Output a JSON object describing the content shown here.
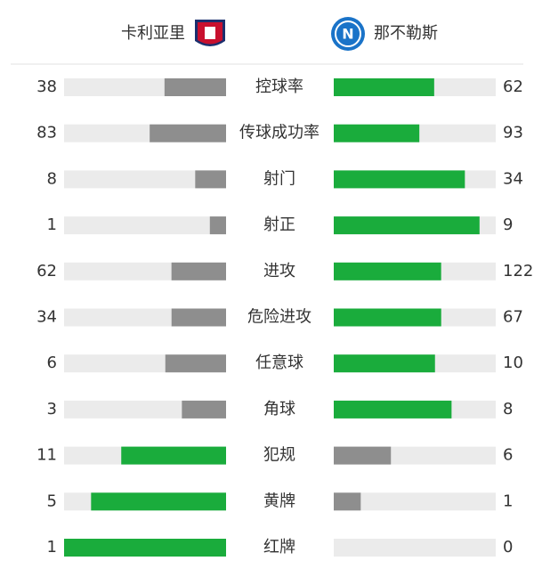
{
  "teams": {
    "home": "卡利亚里",
    "away": "那不勒斯"
  },
  "colors": {
    "leading": "#1aac3c",
    "trailing": "#8e8e8e",
    "track": "#ebebeb"
  },
  "stats": [
    {
      "label": "控球率",
      "home": 38,
      "away": 62
    },
    {
      "label": "传球成功率",
      "home": 83,
      "away": 93
    },
    {
      "label": "射门",
      "home": 8,
      "away": 34
    },
    {
      "label": "射正",
      "home": 1,
      "away": 9
    },
    {
      "label": "进攻",
      "home": 62,
      "away": 122
    },
    {
      "label": "危险进攻",
      "home": 34,
      "away": 67
    },
    {
      "label": "任意球",
      "home": 6,
      "away": 10
    },
    {
      "label": "角球",
      "home": 3,
      "away": 8
    },
    {
      "label": "犯规",
      "home": 11,
      "away": 6
    },
    {
      "label": "黄牌",
      "home": 5,
      "away": 1
    },
    {
      "label": "红牌",
      "home": 1,
      "away": 0
    }
  ]
}
